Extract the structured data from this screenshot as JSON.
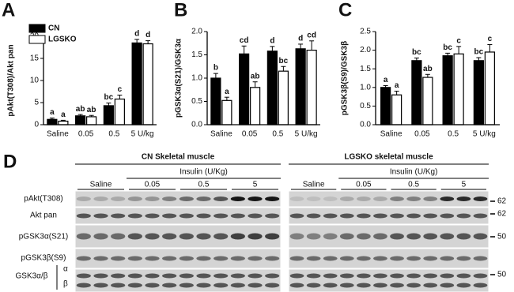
{
  "chart_data": [
    {
      "type": "bar",
      "panel": "A",
      "ylabel": "pAkt(T308)/Akt pan",
      "categories": [
        "Saline",
        "0.05",
        "0.5",
        "5 U/kg"
      ],
      "ylim": [
        0,
        20
      ],
      "yticks": [
        0,
        5,
        10,
        15,
        20
      ],
      "legend": "upper left",
      "series": [
        {
          "name": "CN",
          "color": "#000000",
          "values": [
            1.2,
            2.0,
            4.3,
            18.5
          ],
          "errors": [
            0.3,
            0.3,
            0.6,
            0.8
          ],
          "labels": [
            "a",
            "ab",
            "bc",
            "d"
          ]
        },
        {
          "name": "LGSKO",
          "color": "#ffffff",
          "values": [
            0.8,
            1.8,
            5.8,
            18.3
          ],
          "errors": [
            0.2,
            0.3,
            0.9,
            0.7
          ],
          "labels": [
            "a",
            "ab",
            "c",
            "d"
          ]
        }
      ]
    },
    {
      "type": "bar",
      "panel": "B",
      "ylabel": "pGSK3α(S21)/GSK3α",
      "categories": [
        "Saline",
        "0.05",
        "0.5",
        "5 U/kg"
      ],
      "ylim": [
        0,
        2.0
      ],
      "yticks": [
        {
          "value": 0,
          "label": "0.0"
        },
        0.5,
        {
          "value": 1,
          "label": "1.0"
        },
        1.5,
        {
          "value": 2,
          "label": "2.0"
        }
      ],
      "series": [
        {
          "color": "#000000",
          "values": [
            1.0,
            1.52,
            1.58,
            1.63
          ],
          "errors": [
            0.1,
            0.17,
            0.1,
            0.1
          ],
          "labels": [
            "b",
            "cd",
            "d",
            "d"
          ]
        },
        {
          "color": "#ffffff",
          "values": [
            0.52,
            0.8,
            1.15,
            1.6
          ],
          "errors": [
            0.07,
            0.12,
            0.1,
            0.2
          ],
          "labels": [
            "a",
            "ab",
            "bc",
            "cd"
          ]
        }
      ]
    },
    {
      "type": "bar",
      "panel": "C",
      "ylabel": "pGSK3β(S9)/GSK3β",
      "categories": [
        "Saline",
        "0.05",
        "0.5",
        "5 U/kg"
      ],
      "ylim": [
        0,
        2.5
      ],
      "yticks": [
        {
          "value": 0,
          "label": "0.0"
        },
        0.5,
        {
          "value": 1,
          "label": "1.0"
        },
        1.5,
        {
          "value": 2,
          "label": "2.0"
        },
        2.5
      ],
      "series": [
        {
          "color": "#000000",
          "values": [
            1.0,
            1.72,
            1.85,
            1.72
          ],
          "errors": [
            0.05,
            0.07,
            0.07,
            0.08
          ],
          "labels": [
            "a",
            "bc",
            "bc",
            "bc"
          ]
        },
        {
          "color": "#ffffff",
          "values": [
            0.8,
            1.27,
            1.9,
            1.95
          ],
          "errors": [
            0.1,
            0.08,
            0.2,
            0.2
          ],
          "labels": [
            "a",
            "ab",
            "c",
            "c"
          ]
        }
      ]
    }
  ],
  "blot": {
    "panel": "D",
    "groups": [
      {
        "title": "CN Skeletal muscle",
        "treatment": "Insulin (U/Kg)",
        "doses": [
          "Saline",
          "0.05",
          "0.5",
          "5"
        ]
      },
      {
        "title": "LGSKO skeletal muscle",
        "treatment": "Insulin (U/Kg)",
        "doses": [
          "Saline",
          "0.05",
          "0.5",
          "5"
        ]
      }
    ],
    "rows": [
      "pAkt(T308)",
      "Akt pan",
      "pGSK3α(S21)",
      "pGSK3β(S9)",
      "GSK3α/β"
    ],
    "isoforms": [
      "α",
      "β"
    ],
    "markers": [
      "62",
      "62",
      "50",
      "50"
    ]
  }
}
